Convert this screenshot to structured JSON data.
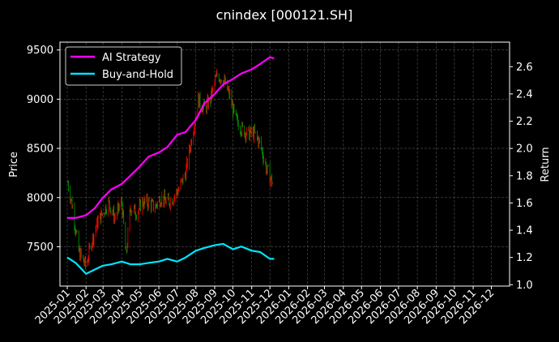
{
  "chart_data": {
    "type": "line",
    "title": "cnindex [000121.SH]",
    "ylabel_left": "Price",
    "ylabel_right": "Return",
    "colors": {
      "background": "#000000",
      "ai_strategy": "#ff00ff",
      "buy_and_hold": "#00e5ff",
      "candle_up": "#ff0000",
      "candle_down": "#00a000",
      "grid": "#555555"
    },
    "grid": true,
    "legend_position": "top-left",
    "x_range": [
      "2024-12-20",
      "2026-12-31"
    ],
    "y_left_range": [
      7100,
      9580
    ],
    "y_right_range": [
      0.99,
      2.78
    ],
    "x_tick_labels": [
      "2025-01",
      "2025-02",
      "2025-03",
      "2025-04",
      "2025-05",
      "2025-06",
      "2025-07",
      "2025-08",
      "2025-09",
      "2025-10",
      "2025-11",
      "2025-12",
      "2026-01",
      "2026-02",
      "2026-03",
      "2026-04",
      "2026-05",
      "2026-06",
      "2026-07",
      "2026-08",
      "2026-09",
      "2026-10",
      "2026-11",
      "2026-12"
    ],
    "y_left_ticks": [
      7500,
      8000,
      8500,
      9000,
      9500
    ],
    "y_left_tick_labels": [
      "7500",
      "8000",
      "8500",
      "9000",
      "9500"
    ],
    "y_right_ticks": [
      1.0,
      1.2,
      1.4,
      1.6,
      1.8,
      2.0,
      2.2,
      2.4,
      2.6
    ],
    "y_right_tick_labels": [
      "1.0",
      "1.2",
      "1.4",
      "1.6",
      "1.8",
      "2.0",
      "2.2",
      "2.4",
      "2.6"
    ],
    "price": {
      "name": "Price",
      "dates": [
        "2025-01-02",
        "2025-01-10",
        "2025-01-20",
        "2025-02-01",
        "2025-02-10",
        "2025-02-20",
        "2025-03-01",
        "2025-03-10",
        "2025-03-20",
        "2025-04-01",
        "2025-04-08",
        "2025-04-15",
        "2025-04-25",
        "2025-05-05",
        "2025-05-15",
        "2025-05-25",
        "2025-06-05",
        "2025-06-15",
        "2025-06-25",
        "2025-07-05",
        "2025-07-15",
        "2025-07-25",
        "2025-08-05",
        "2025-08-15",
        "2025-08-25",
        "2025-09-05",
        "2025-09-15",
        "2025-09-25",
        "2025-10-05",
        "2025-10-15",
        "2025-10-25",
        "2025-11-05",
        "2025-11-15",
        "2025-11-25",
        "2025-12-05"
      ],
      "values": [
        8150,
        7900,
        7450,
        7300,
        7550,
        7750,
        7850,
        7950,
        7800,
        7950,
        7400,
        7900,
        7850,
        7950,
        7950,
        7900,
        8000,
        7950,
        8000,
        8100,
        8250,
        8600,
        9000,
        8900,
        9000,
        9250,
        9200,
        9050,
        8800,
        8700,
        8650,
        8650,
        8550,
        8300,
        8150
      ]
    },
    "series": [
      {
        "name": "AI Strategy",
        "dates": [
          "2025-01-01",
          "2025-01-15",
          "2025-02-01",
          "2025-02-15",
          "2025-03-01",
          "2025-03-15",
          "2025-04-01",
          "2025-04-15",
          "2025-05-01",
          "2025-05-15",
          "2025-06-01",
          "2025-06-15",
          "2025-07-01",
          "2025-07-15",
          "2025-08-01",
          "2025-08-15",
          "2025-09-01",
          "2025-09-15",
          "2025-10-01",
          "2025-10-15",
          "2025-11-01",
          "2025-11-15",
          "2025-12-01",
          "2025-12-08"
        ],
        "values": [
          1.49,
          1.49,
          1.51,
          1.56,
          1.64,
          1.7,
          1.74,
          1.8,
          1.87,
          1.94,
          1.97,
          2.01,
          2.1,
          2.12,
          2.21,
          2.33,
          2.4,
          2.47,
          2.51,
          2.55,
          2.58,
          2.62,
          2.67,
          2.66
        ]
      },
      {
        "name": "Buy-and-Hold",
        "dates": [
          "2025-01-01",
          "2025-01-15",
          "2025-02-01",
          "2025-02-15",
          "2025-03-01",
          "2025-03-15",
          "2025-04-01",
          "2025-04-15",
          "2025-05-01",
          "2025-05-15",
          "2025-06-01",
          "2025-06-15",
          "2025-07-01",
          "2025-07-15",
          "2025-08-01",
          "2025-08-15",
          "2025-09-01",
          "2025-09-15",
          "2025-10-01",
          "2025-10-15",
          "2025-11-01",
          "2025-11-15",
          "2025-12-01",
          "2025-12-08"
        ],
        "values": [
          1.2,
          1.16,
          1.08,
          1.11,
          1.14,
          1.15,
          1.17,
          1.15,
          1.15,
          1.16,
          1.17,
          1.19,
          1.17,
          1.2,
          1.25,
          1.27,
          1.29,
          1.3,
          1.26,
          1.28,
          1.25,
          1.24,
          1.19,
          1.19
        ]
      }
    ]
  }
}
